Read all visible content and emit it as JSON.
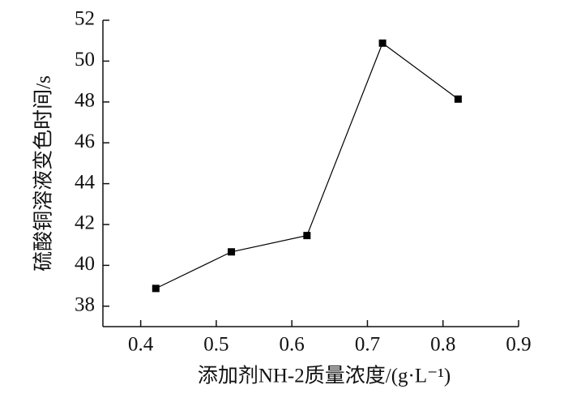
{
  "chart_data": {
    "type": "line",
    "xlabel": "添加剂NH-2质量浓度/(g·L⁻¹)",
    "ylabel": "硫酸铜溶液变色时间/s",
    "x": [
      0.42,
      0.52,
      0.62,
      0.72,
      0.82
    ],
    "series": [
      {
        "color": "#000000",
        "values": [
          38.87,
          40.66,
          41.46,
          50.88,
          48.14
        ]
      }
    ],
    "xlim": [
      0.35,
      0.9
    ],
    "xticks": [
      0.4,
      0.5,
      0.6,
      0.7,
      0.8,
      0.9
    ],
    "ylim": [
      37,
      52
    ],
    "yticks": [
      38,
      40,
      42,
      44,
      46,
      48,
      50,
      52
    ],
    "grid": false,
    "marker": "square"
  }
}
